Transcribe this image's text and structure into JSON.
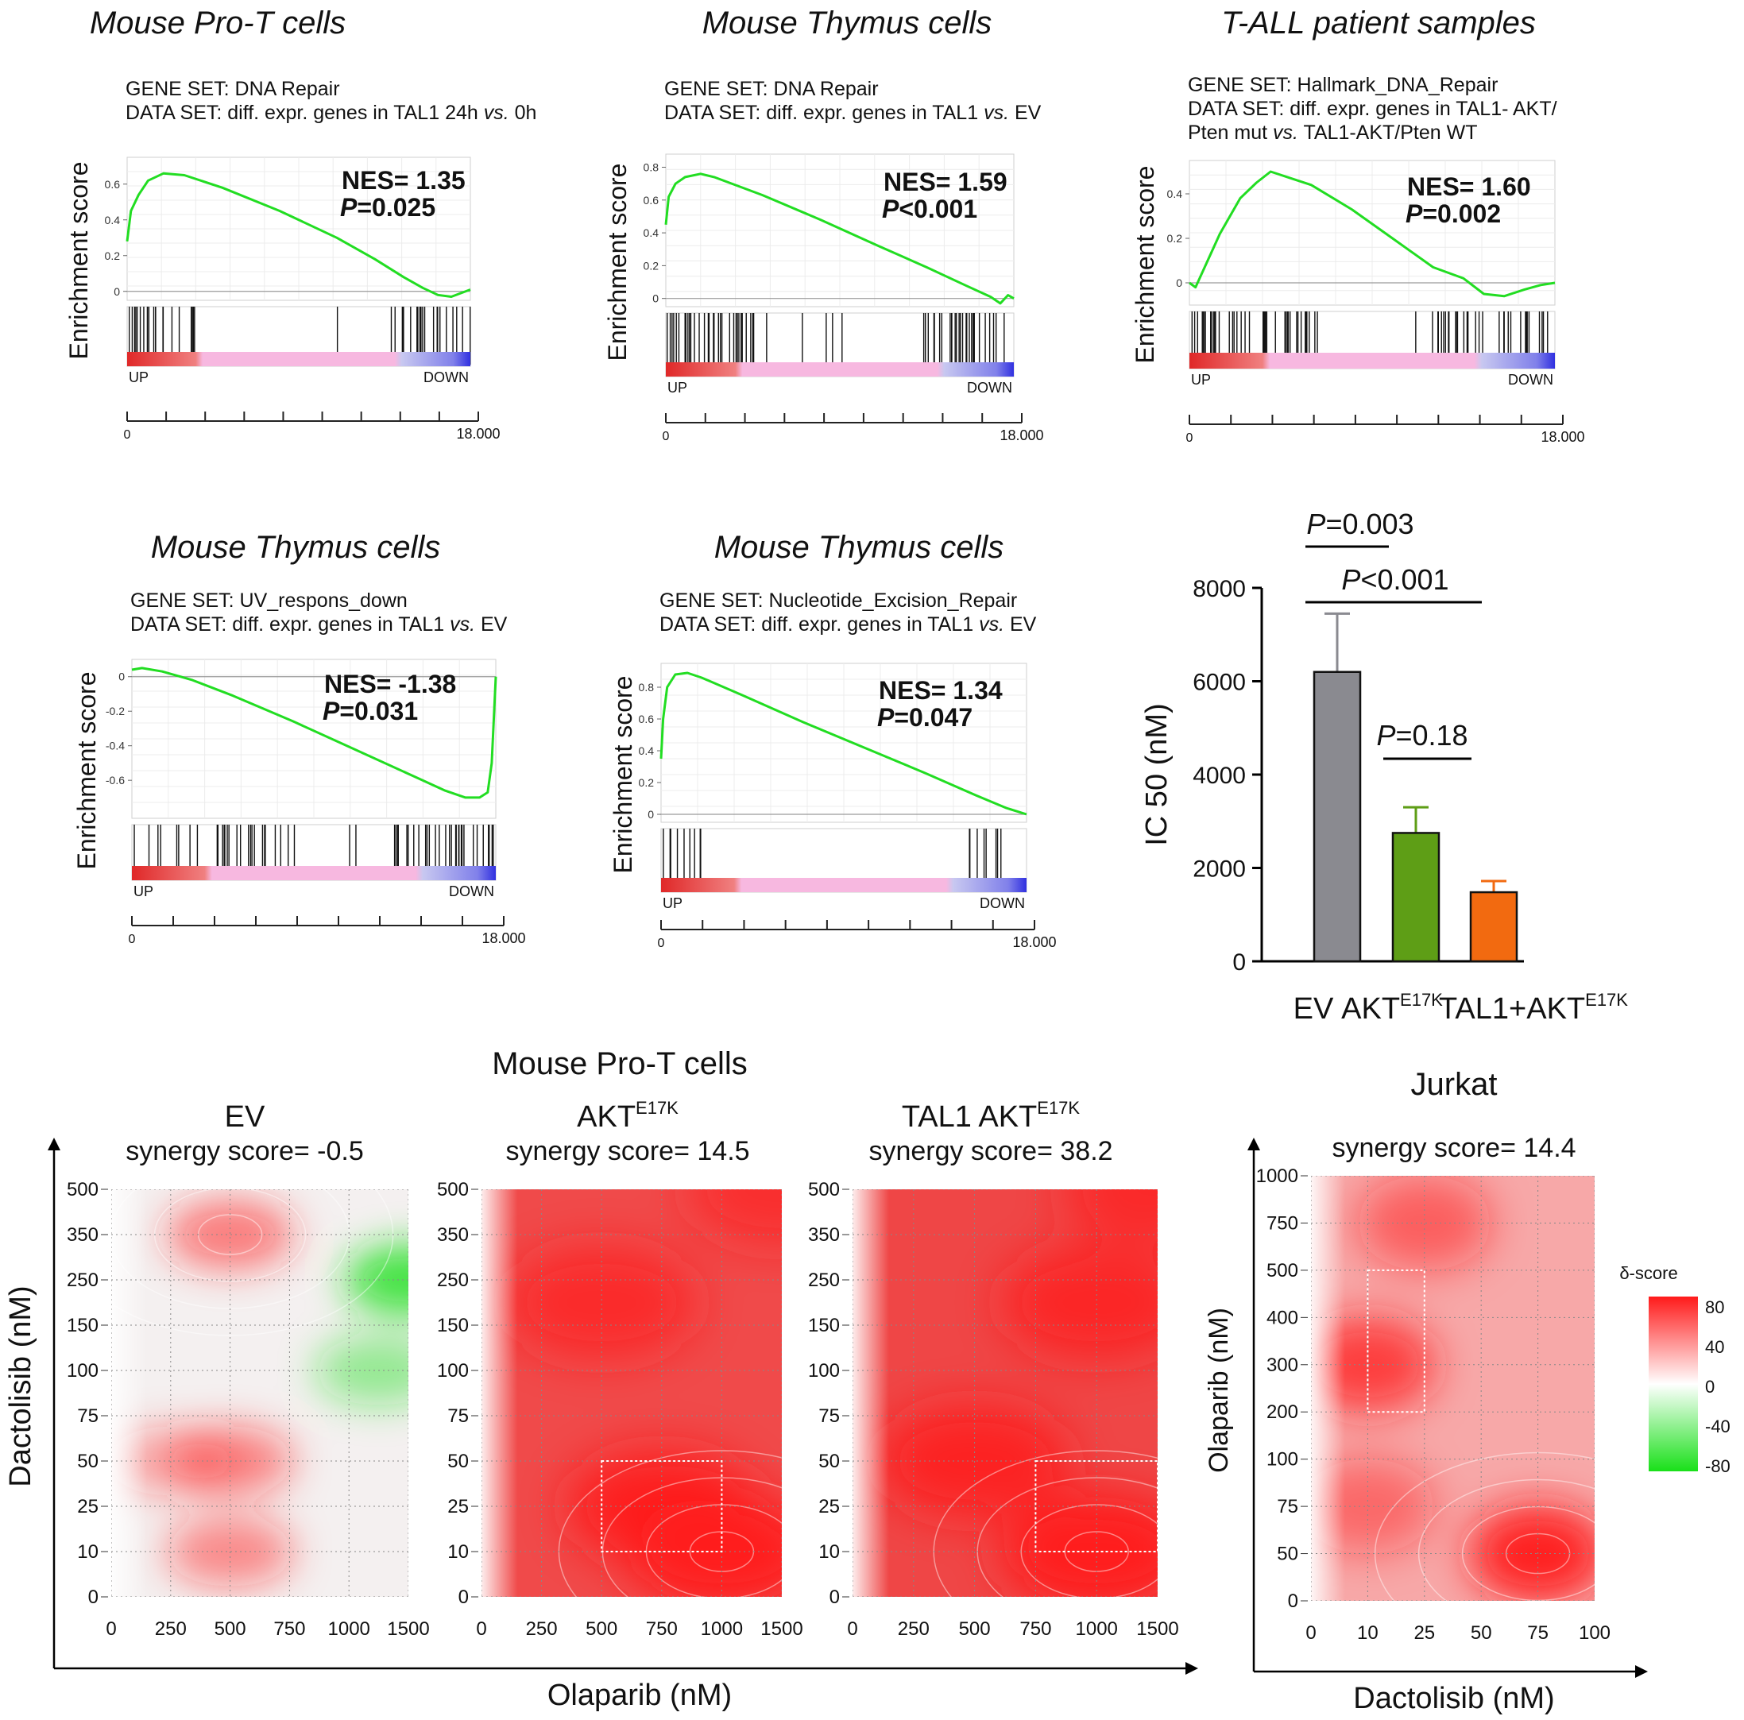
{
  "colors": {
    "enrichment_line": "#22dd22",
    "rank_up": "#e02828",
    "rank_mid": "#f7b8e0",
    "rank_down": "#3030e0",
    "bar_ev": "#8a8a90",
    "bar_akt": "#5e9e16",
    "bar_tal1_akt": "#f26a10",
    "synergy_pos": "#ff1a1a",
    "synergy_neg": "#19e019"
  },
  "icons": {
    "axis_arrow_up": "arrow-up-icon",
    "axis_arrow_right": "arrow-right-icon"
  },
  "gsea_common": {
    "ylabel": "Enrichment score",
    "up_label": "UP",
    "down_label": "DOWN",
    "x_start_label": "0",
    "x_end_label": "18.000"
  },
  "gsea_panels": [
    {
      "title": "Mouse Pro-T cells",
      "gene_set": "GENE SET: DNA Repair",
      "data_set_lines": [
        [
          {
            "t": "DATA SET: diff. expr. genes in TAL1 24h "
          },
          {
            "t": "vs.",
            "i": true
          },
          {
            "t": " 0h"
          }
        ]
      ],
      "nes_text": "NES= 1.35",
      "p_prefix": "P",
      "p_suffix": "=0.025",
      "yticks": [
        "0.6",
        "0.4",
        "0.2",
        "0"
      ],
      "chart_data": {
        "type": "line",
        "xlim": [
          0,
          18000
        ],
        "ylim": [
          -0.05,
          0.75
        ],
        "x": [
          0,
          200,
          600,
          1100,
          1900,
          3000,
          5000,
          8000,
          11000,
          13000,
          14500,
          15500,
          16300,
          17000,
          17500,
          18000
        ],
        "y": [
          0.28,
          0.45,
          0.54,
          0.62,
          0.66,
          0.65,
          0.58,
          0.45,
          0.3,
          0.18,
          0.08,
          0.02,
          -0.02,
          -0.03,
          -0.01,
          0.01
        ],
        "nes": 1.35,
        "p_value": 0.025
      }
    },
    {
      "title": "Mouse Thymus cells",
      "gene_set": "GENE SET: DNA Repair",
      "data_set_lines": [
        [
          {
            "t": "DATA SET: diff. expr. genes in TAL1 "
          },
          {
            "t": "vs.",
            "i": true
          },
          {
            "t": " EV"
          }
        ]
      ],
      "nes_text": "NES= 1.59",
      "p_prefix": "P",
      "p_suffix": "<0.001",
      "yticks": [
        "0.8",
        "0.6",
        "0.4",
        "0.2",
        "0"
      ],
      "chart_data": {
        "type": "line",
        "xlim": [
          0,
          18000
        ],
        "ylim": [
          -0.05,
          0.88
        ],
        "x": [
          0,
          150,
          500,
          1000,
          1800,
          2500,
          5000,
          8000,
          11000,
          13500,
          15500,
          16800,
          17300,
          17700,
          18000
        ],
        "y": [
          0.45,
          0.62,
          0.7,
          0.74,
          0.76,
          0.74,
          0.63,
          0.48,
          0.32,
          0.19,
          0.08,
          0.01,
          -0.03,
          0.02,
          0.0
        ],
        "nes": 1.59,
        "p_value": 0.001
      }
    },
    {
      "title": "T-ALL patient samples",
      "gene_set": "GENE SET: Hallmark_DNA_Repair",
      "data_set_lines": [
        [
          {
            "t": "DATA SET: diff. expr. genes in TAL1- AKT/"
          }
        ],
        [
          {
            "t": "Pten mut "
          },
          {
            "t": "vs.",
            "i": true
          },
          {
            "t": " TAL1-AKT/Pten WT"
          }
        ]
      ],
      "nes_text": "NES= 1.60",
      "p_prefix": "P",
      "p_suffix": "=0.002",
      "yticks": [
        "0.4",
        "0.2",
        "0"
      ],
      "chart_data": {
        "type": "line",
        "xlim": [
          0,
          18000
        ],
        "ylim": [
          -0.1,
          0.55
        ],
        "x": [
          0,
          300,
          900,
          1500,
          2500,
          3300,
          4000,
          5000,
          6000,
          8000,
          10000,
          12000,
          13500,
          14500,
          15500,
          16500,
          17300,
          18000
        ],
        "y": [
          0.0,
          -0.02,
          0.1,
          0.22,
          0.38,
          0.45,
          0.5,
          0.47,
          0.44,
          0.33,
          0.2,
          0.07,
          0.02,
          -0.05,
          -0.06,
          -0.03,
          -0.01,
          0.0
        ],
        "nes": 1.6,
        "p_value": 0.002
      }
    },
    {
      "title": "Mouse Thymus cells",
      "gene_set": "GENE SET: UV_respons_down",
      "data_set_lines": [
        [
          {
            "t": "DATA SET: diff. expr. genes in TAL1 "
          },
          {
            "t": "vs.",
            "i": true
          },
          {
            "t": " EV"
          }
        ]
      ],
      "nes_text": "NES= -1.38",
      "p_prefix": "P",
      "p_suffix": "=0.031",
      "yticks": [
        "0",
        "-0.2",
        "-0.4",
        "-0.6"
      ],
      "chart_data": {
        "type": "line",
        "xlim": [
          0,
          18000
        ],
        "ylim": [
          -0.82,
          0.1
        ],
        "x": [
          0,
          500,
          1500,
          3000,
          5000,
          8000,
          11000,
          14000,
          15500,
          16500,
          17200,
          17600,
          17800,
          18000
        ],
        "y": [
          0.04,
          0.05,
          0.03,
          -0.02,
          -0.11,
          -0.26,
          -0.42,
          -0.58,
          -0.66,
          -0.7,
          -0.7,
          -0.67,
          -0.5,
          0.0
        ],
        "nes": -1.38,
        "p_value": 0.031
      }
    },
    {
      "title": "Mouse Thymus cells",
      "gene_set": "GENE SET: Nucleotide_Excision_Repair",
      "data_set_lines": [
        [
          {
            "t": "DATA SET: diff. expr. genes in TAL1 "
          },
          {
            "t": "vs.",
            "i": true
          },
          {
            "t": " EV"
          }
        ]
      ],
      "nes_text": "NES= 1.34",
      "p_prefix": "P",
      "p_suffix": "=0.047",
      "yticks": [
        "0.8",
        "0.6",
        "0.4",
        "0.2",
        "0"
      ],
      "chart_data": {
        "type": "line",
        "xlim": [
          0,
          18000
        ],
        "ylim": [
          -0.05,
          0.95
        ],
        "x": [
          0,
          100,
          300,
          700,
          1300,
          2000,
          4000,
          7000,
          10000,
          13000,
          15500,
          17000,
          18000
        ],
        "y": [
          0.35,
          0.6,
          0.8,
          0.88,
          0.89,
          0.86,
          0.75,
          0.58,
          0.42,
          0.26,
          0.12,
          0.04,
          0.0
        ],
        "nes": 1.34,
        "p_value": 0.047
      }
    }
  ],
  "bar_chart": {
    "ylabel": "IC 50 (nM)",
    "yticks": [
      "0",
      "2000",
      "4000",
      "6000",
      "8000"
    ],
    "category_labels": [
      {
        "base": "EV",
        "sup": ""
      },
      {
        "base": "AKT",
        "sup": "E17K"
      },
      {
        "base": "TAL1+AKT",
        "sup": "E17K"
      }
    ],
    "significance": [
      {
        "prefix": "P",
        "suffix": "=0.003",
        "pair": [
          0,
          1
        ]
      },
      {
        "prefix": "P",
        "suffix": "<0.001",
        "pair": [
          0,
          2
        ]
      },
      {
        "prefix": "P",
        "suffix": "=0.18",
        "pair": [
          1,
          2
        ]
      }
    ],
    "chart_data": {
      "type": "bar",
      "categories": [
        "EV",
        "AKT E17K",
        "TAL1+AKT E17K"
      ],
      "values": [
        6200,
        2750,
        1480
      ],
      "error_upper": [
        7450,
        3300,
        1720
      ],
      "ylim": [
        0,
        8000
      ]
    }
  },
  "synergy": {
    "group_title": "Mouse Pro-T cells",
    "shared_xlabel": "Olaparib (nM)",
    "shared_ylabel": "Dactolisib  (nM)",
    "panels": [
      {
        "title_base": "EV",
        "title_sup": "",
        "score_text": "synergy score= -0.5",
        "xticks": [
          "0",
          "250",
          "500",
          "750",
          "1000",
          "1500"
        ],
        "yticks": [
          "0",
          "10",
          "25",
          "50",
          "75",
          "100",
          "150",
          "250",
          "350",
          "500"
        ],
        "chart_data": {
          "type": "heatmap",
          "x_categories": [
            0,
            250,
            500,
            750,
            1000,
            1500
          ],
          "y_categories": [
            0,
            10,
            25,
            50,
            75,
            100,
            150,
            250,
            350,
            500
          ],
          "synergy_score": -0.5,
          "blobs": [
            {
              "x": 500,
              "y": 350,
              "delta": 45
            },
            {
              "x": 500,
              "y": 50,
              "delta": 40
            },
            {
              "x": 500,
              "y": 10,
              "delta": 38
            },
            {
              "x": 250,
              "y": 50,
              "delta": 25
            },
            {
              "x": 1500,
              "y": 250,
              "delta": -65
            },
            {
              "x": 1250,
              "y": 100,
              "delta": -35
            }
          ]
        }
      },
      {
        "title_base": "AKT",
        "title_sup": "E17K",
        "score_text": "synergy score= 14.5",
        "xticks": [
          "0",
          "250",
          "500",
          "750",
          "1000",
          "1500"
        ],
        "yticks": [
          "0",
          "10",
          "25",
          "50",
          "75",
          "100",
          "150",
          "250",
          "350",
          "500"
        ],
        "chart_data": {
          "type": "heatmap",
          "x_categories": [
            0,
            250,
            500,
            750,
            1000,
            1500
          ],
          "y_categories": [
            0,
            10,
            25,
            50,
            75,
            100,
            150,
            250,
            350,
            500
          ],
          "synergy_score": 14.5,
          "highlight_box": {
            "x": [
              500,
              1000
            ],
            "y": [
              10,
              50
            ]
          },
          "blobs": [
            {
              "x": 1000,
              "y": 10,
              "delta": 80
            },
            {
              "x": 750,
              "y": 25,
              "delta": 70
            },
            {
              "x": 500,
              "y": 200,
              "delta": 55
            },
            {
              "x": 1500,
              "y": 500,
              "delta": 50
            }
          ]
        }
      },
      {
        "title_base": "TAL1 AKT",
        "title_sup": "E17K",
        "score_text": "synergy score= 38.2",
        "xticks": [
          "0",
          "250",
          "500",
          "750",
          "1000",
          "1500"
        ],
        "yticks": [
          "0",
          "10",
          "25",
          "50",
          "75",
          "100",
          "150",
          "250",
          "350",
          "500"
        ],
        "chart_data": {
          "type": "heatmap",
          "x_categories": [
            0,
            250,
            500,
            750,
            1000,
            1500
          ],
          "y_categories": [
            0,
            10,
            25,
            50,
            75,
            100,
            150,
            250,
            350,
            500
          ],
          "synergy_score": 38.2,
          "highlight_box": {
            "x": [
              750,
              1500
            ],
            "y": [
              10,
              50
            ]
          },
          "blobs": [
            {
              "x": 1000,
              "y": 10,
              "delta": 80
            },
            {
              "x": 500,
              "y": 50,
              "delta": 65
            },
            {
              "x": 1000,
              "y": 200,
              "delta": 60
            },
            {
              "x": 1500,
              "y": 500,
              "delta": 55
            }
          ]
        }
      }
    ],
    "jurkat": {
      "title": "Jurkat",
      "score_text": "synergy score= 14.4",
      "xlabel": "Dactolisib (nM)",
      "ylabel": "Olaparib (nM)",
      "xticks": [
        "0",
        "10",
        "25",
        "50",
        "75",
        "100"
      ],
      "yticks": [
        "0",
        "50",
        "75",
        "100",
        "200",
        "300",
        "400",
        "500",
        "750",
        "1000"
      ],
      "chart_data": {
        "type": "heatmap",
        "x_categories": [
          0,
          10,
          25,
          50,
          75,
          100
        ],
        "y_categories": [
          0,
          50,
          75,
          100,
          200,
          300,
          400,
          500,
          750,
          1000
        ],
        "synergy_score": 14.4,
        "highlight_box": {
          "x": [
            10,
            25
          ],
          "y": [
            200,
            500
          ]
        },
        "blobs": [
          {
            "x": 75,
            "y": 50,
            "delta": 75
          },
          {
            "x": 10,
            "y": 300,
            "delta": 60
          },
          {
            "x": 25,
            "y": 750,
            "delta": 40
          },
          {
            "x": 10,
            "y": 75,
            "delta": 35
          }
        ]
      }
    },
    "legend": {
      "title": "δ-score",
      "ticks": [
        "80",
        "40",
        "0",
        "-40",
        "-80"
      ]
    }
  }
}
